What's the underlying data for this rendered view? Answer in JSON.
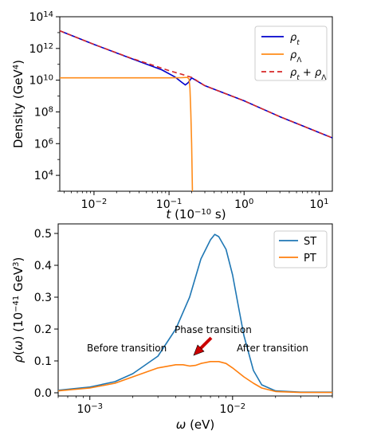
{
  "chart_data": [
    {
      "type": "line",
      "xscale": "log",
      "yscale": "log",
      "xlim": [
        0.0035,
        15
      ],
      "ylim": [
        1000,
        100000000000000.0
      ],
      "grid": false,
      "legend_position": "top-right",
      "xlabel": {
        "italic": "t",
        "rest": " (10",
        "exp": "−10",
        "unit": " s)"
      },
      "ylabel": {
        "text": "Density (GeV",
        "exp": "4",
        "close": ")"
      },
      "x_ticks": [
        {
          "value": 0.01,
          "base": "10",
          "exp": "−2"
        },
        {
          "value": 0.1,
          "base": "10",
          "exp": "−1"
        },
        {
          "value": 1,
          "base": "10",
          "exp": "0"
        },
        {
          "value": 10,
          "base": "10",
          "exp": "1"
        }
      ],
      "y_ticks": [
        {
          "value": 10000,
          "base": "10",
          "exp": "4"
        },
        {
          "value": 1000000,
          "base": "10",
          "exp": "6"
        },
        {
          "value": 100000000,
          "base": "10",
          "exp": "8"
        },
        {
          "value": 10000000000,
          "base": "10",
          "exp": "10"
        },
        {
          "value": 1000000000000,
          "base": "10",
          "exp": "12"
        },
        {
          "value": 100000000000000,
          "base": "10",
          "exp": "14"
        }
      ],
      "series": [
        {
          "name": "ρ_t",
          "label": {
            "sym": "ρ",
            "sub": "t"
          },
          "color": "#0000cc",
          "dash": "none",
          "points": [
            [
              0.0035,
              13000000000000.0
            ],
            [
              0.01,
              1800000000000.0
            ],
            [
              0.03,
              250000000000.0
            ],
            [
              0.08,
              45000000000.0
            ],
            [
              0.12,
              16000000000.0
            ],
            [
              0.15,
              7000000000.0
            ],
            [
              0.165,
              5000000000.0
            ],
            [
              0.18,
              7000000000.0
            ],
            [
              0.2,
              14000000000.0
            ],
            [
              0.3,
              4500000000.0
            ],
            [
              1,
              500000000.0
            ],
            [
              3,
              50000000.0
            ],
            [
              10,
              5000000.0
            ],
            [
              15,
              2300000.0
            ]
          ]
        },
        {
          "name": "ρ_Λ",
          "label": {
            "sym": "ρ",
            "sub": "Λ"
          },
          "color": "#ff8c1a",
          "dash": "none",
          "points": [
            [
              0.0035,
              14000000000.0
            ],
            [
              0.05,
              14000000000.0
            ],
            [
              0.1,
              14000000000.0
            ],
            [
              0.15,
              14500000000.0
            ],
            [
              0.175,
              15000000000.0
            ],
            [
              0.185,
              12000000000.0
            ],
            [
              0.19,
              3000000000.0
            ],
            [
              0.195,
              100000000.0
            ],
            [
              0.2,
              1000000.0
            ],
            [
              0.205,
              1000
            ]
          ]
        },
        {
          "name": "ρ_t + ρ_Λ",
          "label": {
            "sym": "ρ",
            "sub": "t",
            "plus": " + ",
            "sym2": "ρ",
            "sub2": "Λ"
          },
          "color": "#d62728",
          "dash": "6,4",
          "points": [
            [
              0.0035,
              13000000000000.0
            ],
            [
              0.01,
              1800000000000.0
            ],
            [
              0.03,
              260000000000.0
            ],
            [
              0.06,
              90000000000.0
            ],
            [
              0.1,
              40000000000.0
            ],
            [
              0.15,
              23000000000.0
            ],
            [
              0.2,
              15000000000.0
            ],
            [
              0.3,
              4500000000.0
            ],
            [
              1,
              500000000.0
            ],
            [
              3,
              50000000.0
            ],
            [
              10,
              5000000.0
            ],
            [
              15,
              2300000.0
            ]
          ]
        }
      ]
    },
    {
      "type": "line",
      "xscale": "log",
      "yscale": "linear",
      "xlim": [
        0.0006,
        0.05
      ],
      "ylim": [
        -0.01,
        0.53
      ],
      "grid": false,
      "legend_position": "top-right",
      "xlabel": {
        "italic": "ω",
        "rest": " (eV)"
      },
      "ylabel": {
        "italic": "ρ",
        "rest1": "(",
        "italic2": "ω",
        "rest2": ") (10",
        "exp": "−41",
        "unit": " GeV",
        "exp2": "3",
        "close": ")"
      },
      "x_ticks": [
        {
          "value": 0.001,
          "base": "10",
          "exp": "−3"
        },
        {
          "value": 0.01,
          "base": "10",
          "exp": "−2"
        }
      ],
      "y_ticks": [
        {
          "value": 0.0,
          "label": "0.0"
        },
        {
          "value": 0.1,
          "label": "0.1"
        },
        {
          "value": 0.2,
          "label": "0.2"
        },
        {
          "value": 0.3,
          "label": "0.3"
        },
        {
          "value": 0.4,
          "label": "0.4"
        },
        {
          "value": 0.5,
          "label": "0.5"
        }
      ],
      "series": [
        {
          "name": "ST",
          "color": "#1f77b4",
          "points": [
            [
              0.0006,
              0.008
            ],
            [
              0.001,
              0.018
            ],
            [
              0.0015,
              0.035
            ],
            [
              0.002,
              0.06
            ],
            [
              0.003,
              0.115
            ],
            [
              0.004,
              0.2
            ],
            [
              0.005,
              0.3
            ],
            [
              0.006,
              0.42
            ],
            [
              0.007,
              0.48
            ],
            [
              0.0075,
              0.497
            ],
            [
              0.008,
              0.49
            ],
            [
              0.009,
              0.45
            ],
            [
              0.01,
              0.37
            ],
            [
              0.011,
              0.27
            ],
            [
              0.012,
              0.18
            ],
            [
              0.014,
              0.07
            ],
            [
              0.016,
              0.025
            ],
            [
              0.02,
              0.006
            ],
            [
              0.03,
              0.002
            ],
            [
              0.05,
              0.002
            ]
          ]
        },
        {
          "name": "PT",
          "color": "#ff7f0e",
          "points": [
            [
              0.0006,
              0.006
            ],
            [
              0.001,
              0.015
            ],
            [
              0.0015,
              0.03
            ],
            [
              0.002,
              0.05
            ],
            [
              0.003,
              0.078
            ],
            [
              0.004,
              0.088
            ],
            [
              0.0045,
              0.088
            ],
            [
              0.005,
              0.084
            ],
            [
              0.0055,
              0.086
            ],
            [
              0.006,
              0.092
            ],
            [
              0.007,
              0.098
            ],
            [
              0.008,
              0.098
            ],
            [
              0.009,
              0.092
            ],
            [
              0.01,
              0.078
            ],
            [
              0.012,
              0.05
            ],
            [
              0.014,
              0.03
            ],
            [
              0.016,
              0.015
            ],
            [
              0.02,
              0.004
            ],
            [
              0.03,
              0.001
            ],
            [
              0.05,
              0.001
            ]
          ]
        }
      ],
      "annotations": {
        "phase_transition": "Phase transition",
        "before_transition": "Before transition",
        "after_transition": "After transition",
        "arrow_color": "#cc0000"
      }
    }
  ]
}
